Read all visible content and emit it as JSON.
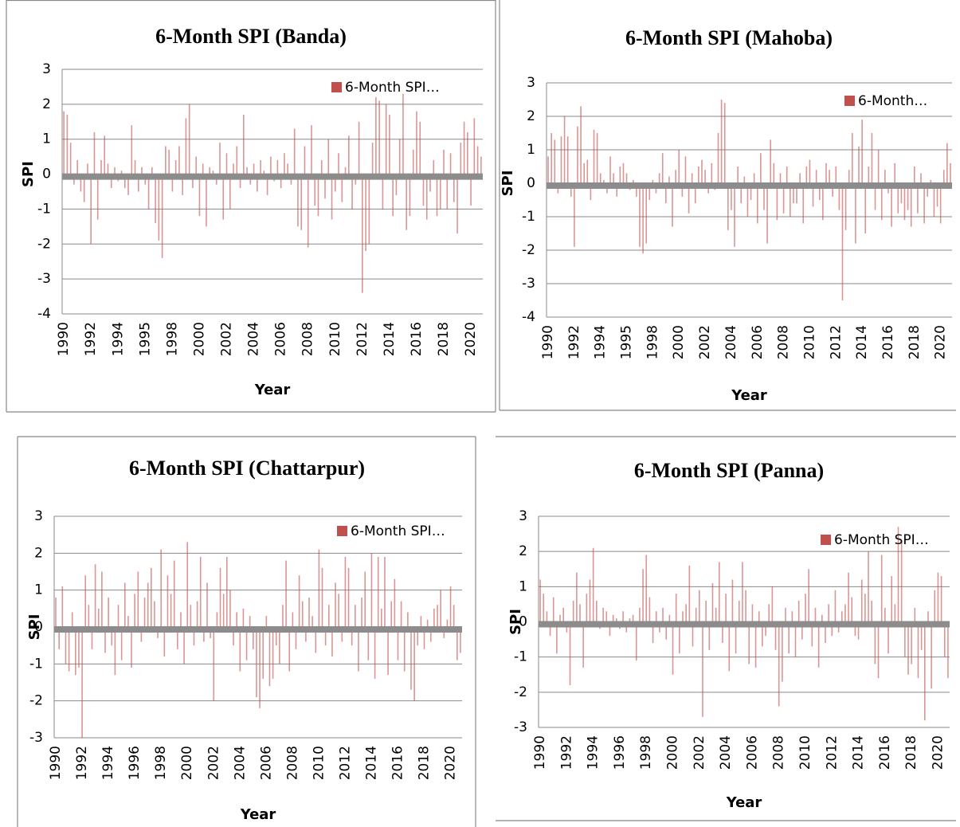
{
  "chart_data": [
    {
      "type": "bar",
      "title": "6-Month SPI (Banda)",
      "x_label": "Year",
      "y_label": "SPI",
      "categories": [
        "1990",
        null,
        null,
        null,
        null,
        null,
        null,
        null,
        "1992",
        null,
        null,
        null,
        null,
        null,
        null,
        null,
        "1994",
        null,
        null,
        null,
        null,
        null,
        null,
        null,
        "1995",
        null,
        null,
        null,
        null,
        null,
        null,
        null,
        "1998",
        null,
        null,
        null,
        null,
        null,
        null,
        null,
        "2000",
        null,
        null,
        null,
        null,
        null,
        null,
        null,
        "2002",
        null,
        null,
        null,
        null,
        null,
        null,
        null,
        "2004",
        null,
        null,
        null,
        null,
        null,
        null,
        null,
        "2006",
        null,
        null,
        null,
        null,
        null,
        null,
        null,
        "2008",
        null,
        null,
        null,
        null,
        null,
        null,
        null,
        "2010",
        null,
        null,
        null,
        null,
        null,
        null,
        null,
        "2012",
        null,
        null,
        null,
        null,
        null,
        null,
        null,
        "2014",
        null,
        null,
        null,
        null,
        null,
        null,
        null,
        "2016",
        null,
        null,
        null,
        null,
        null,
        null,
        null,
        "2018",
        null,
        null,
        null,
        null,
        null,
        null,
        null,
        "2020",
        null,
        null,
        null
      ],
      "series": [
        {
          "name": "6-Month SPI…",
          "color": "#c0504d",
          "values": [
            1.8,
            1.7,
            0.9,
            -0.3,
            0.4,
            -0.5,
            -0.8,
            0.3,
            -2.0,
            1.2,
            -1.3,
            0.4,
            1.1,
            0.3,
            -0.4,
            0.2,
            -0.2,
            0.1,
            -0.4,
            -0.6,
            1.4,
            0.4,
            -0.5,
            0.2,
            -0.3,
            -1.0,
            0.2,
            -1.4,
            -1.9,
            -2.4,
            0.8,
            0.7,
            -0.5,
            0.4,
            0.8,
            -0.6,
            1.6,
            2.0,
            -0.4,
            0.5,
            -1.2,
            0.3,
            -1.5,
            0.2,
            0.1,
            -0.3,
            0.9,
            -1.3,
            0.6,
            -1.0,
            0.3,
            0.8,
            -0.4,
            1.7,
            0.2,
            -0.3,
            0.3,
            -0.5,
            0.4,
            0.1,
            -0.6,
            0.5,
            -0.2,
            0.4,
            -0.4,
            0.6,
            0.3,
            -0.3,
            1.3,
            -1.5,
            -1.6,
            0.8,
            -2.1,
            1.4,
            -0.9,
            -1.2,
            0.4,
            -0.7,
            1.0,
            -1.3,
            -0.5,
            0.6,
            -0.8,
            0.2,
            1.1,
            -1.0,
            -0.3,
            1.5,
            -3.4,
            -2.2,
            -2.0,
            0.9,
            2.2,
            2.1,
            -1.0,
            2.0,
            1.7,
            -1.2,
            -0.6,
            1.0,
            2.3,
            -1.6,
            -1.2,
            0.7,
            1.8,
            1.5,
            -0.9,
            -1.3,
            -0.5,
            0.4,
            -1.2,
            -1.0,
            0.7,
            -1.0,
            0.6,
            -0.8,
            -1.7,
            0.9,
            1.5,
            1.2,
            -0.9,
            1.6,
            0.8,
            0.5
          ]
        }
      ],
      "ylim": [
        -4,
        3
      ],
      "yticks": [
        -4,
        -3,
        -2,
        -1,
        0,
        1,
        2,
        3
      ],
      "grid": true,
      "legend": "top-right"
    },
    {
      "type": "bar",
      "title": "6-Month SPI (Mahoba)",
      "x_label": "Year",
      "y_label": "SPI",
      "categories": [
        "1990",
        null,
        null,
        null,
        null,
        null,
        null,
        null,
        "1992",
        null,
        null,
        null,
        null,
        null,
        null,
        null,
        "1994",
        null,
        null,
        null,
        null,
        null,
        null,
        null,
        "1995",
        null,
        null,
        null,
        null,
        null,
        null,
        null,
        "1998",
        null,
        null,
        null,
        null,
        null,
        null,
        null,
        "2000",
        null,
        null,
        null,
        null,
        null,
        null,
        null,
        "2002",
        null,
        null,
        null,
        null,
        null,
        null,
        null,
        "2004",
        null,
        null,
        null,
        null,
        null,
        null,
        null,
        "2006",
        null,
        null,
        null,
        null,
        null,
        null,
        null,
        "2008",
        null,
        null,
        null,
        null,
        null,
        null,
        null,
        "2010",
        null,
        null,
        null,
        null,
        null,
        null,
        null,
        "2012",
        null,
        null,
        null,
        null,
        null,
        null,
        null,
        "2014",
        null,
        null,
        null,
        null,
        null,
        null,
        null,
        "2016",
        null,
        null,
        null,
        null,
        null,
        null,
        null,
        "2018",
        null,
        null,
        null,
        null,
        null,
        null,
        null,
        "2020",
        null,
        null,
        null
      ],
      "series": [
        {
          "name": "6-Month…",
          "color": "#c0504d",
          "values": [
            0.8,
            1.5,
            1.3,
            -0.3,
            1.4,
            2.0,
            1.4,
            -0.4,
            -1.9,
            1.7,
            2.3,
            0.6,
            0.7,
            -0.5,
            1.6,
            1.5,
            0.3,
            0.1,
            -0.3,
            0.8,
            0.3,
            -0.4,
            0.5,
            0.6,
            0.3,
            -0.2,
            0.1,
            -0.4,
            -1.9,
            -2.1,
            -1.8,
            -0.5,
            0.1,
            -0.3,
            0.3,
            0.9,
            -0.6,
            0.2,
            -1.3,
            0.4,
            1.0,
            -0.4,
            0.8,
            -0.9,
            0.3,
            -0.6,
            0.5,
            0.7,
            0.4,
            -0.3,
            0.6,
            -0.2,
            1.5,
            2.5,
            2.4,
            -1.4,
            -0.8,
            -1.9,
            0.5,
            -0.6,
            0.2,
            -1.0,
            -0.5,
            0.3,
            -1.2,
            0.9,
            -0.8,
            -1.8,
            1.3,
            0.6,
            -1.1,
            0.3,
            -0.9,
            0.5,
            -1.0,
            -0.6,
            -0.6,
            0.3,
            -1.2,
            0.5,
            0.7,
            -0.7,
            0.4,
            -0.5,
            -1.1,
            0.6,
            0.4,
            -0.4,
            0.5,
            -0.8,
            -3.5,
            -1.4,
            0.4,
            1.5,
            -1.8,
            1.1,
            1.9,
            -1.5,
            0.5,
            1.5,
            -0.8,
            1.0,
            -1.1,
            0.4,
            -0.3,
            -1.3,
            0.6,
            -0.9,
            -0.6,
            -1.1,
            -0.8,
            -1.3,
            0.5,
            -0.9,
            0.3,
            -1.2,
            -0.4,
            0.1,
            -1.0,
            -0.7,
            -1.2,
            0.4,
            1.2,
            0.6
          ]
        }
      ],
      "ylim": [
        -4,
        3
      ],
      "yticks": [
        -4,
        -3,
        -2,
        -1,
        0,
        1,
        2,
        3
      ],
      "grid": true,
      "legend": "top-right"
    },
    {
      "type": "bar",
      "title": "6-Month SPI (Chattarpur)",
      "x_label": "Year",
      "y_label": "SPI",
      "categories": [
        "1990",
        null,
        null,
        null,
        null,
        null,
        null,
        null,
        "1992",
        null,
        null,
        null,
        null,
        null,
        null,
        null,
        "1994",
        null,
        null,
        null,
        null,
        null,
        null,
        null,
        "1996",
        null,
        null,
        null,
        null,
        null,
        null,
        null,
        "1998",
        null,
        null,
        null,
        null,
        null,
        null,
        null,
        "2000",
        null,
        null,
        null,
        null,
        null,
        null,
        null,
        "2002",
        null,
        null,
        null,
        null,
        null,
        null,
        null,
        "2004",
        null,
        null,
        null,
        null,
        null,
        null,
        null,
        "2006",
        null,
        null,
        null,
        null,
        null,
        null,
        null,
        "2008",
        null,
        null,
        null,
        null,
        null,
        null,
        null,
        "2010",
        null,
        null,
        null,
        null,
        null,
        null,
        null,
        "2012",
        null,
        null,
        null,
        null,
        null,
        null,
        null,
        "2014",
        null,
        null,
        null,
        null,
        null,
        null,
        null,
        "2016",
        null,
        null,
        null,
        null,
        null,
        null,
        null,
        "2018",
        null,
        null,
        null,
        null,
        null,
        null,
        null,
        "2020",
        null,
        null,
        null
      ],
      "series": [
        {
          "name": "6-Month SPI…",
          "color": "#c0504d",
          "values": [
            0.8,
            -0.6,
            1.1,
            -1.0,
            -1.2,
            0.4,
            -1.3,
            -1.1,
            -3.0,
            1.4,
            0.6,
            -0.6,
            1.7,
            0.5,
            1.5,
            -0.7,
            0.8,
            -0.5,
            -1.3,
            0.6,
            -0.9,
            1.2,
            0.3,
            -1.1,
            0.9,
            1.5,
            -0.4,
            0.8,
            1.2,
            1.6,
            0.7,
            -0.3,
            2.1,
            -0.8,
            1.4,
            0.9,
            1.8,
            -0.6,
            0.4,
            -1.0,
            2.3,
            0.6,
            -0.5,
            0.7,
            1.9,
            -0.4,
            1.2,
            -0.3,
            -2.0,
            0.4,
            1.6,
            0.9,
            1.9,
            1.0,
            -0.5,
            0.4,
            -1.2,
            0.5,
            -0.9,
            0.3,
            -0.6,
            -1.9,
            -2.2,
            -1.4,
            0.3,
            -1.6,
            -1.4,
            -0.5,
            -1.0,
            0.6,
            1.8,
            -1.2,
            0.4,
            -0.6,
            1.4,
            0.7,
            -0.4,
            0.8,
            0.3,
            -0.7,
            2.1,
            1.6,
            -0.5,
            0.6,
            -0.8,
            1.2,
            0.9,
            -0.4,
            1.9,
            1.6,
            -0.5,
            0.6,
            -1.2,
            0.8,
            1.5,
            -0.9,
            2.0,
            -1.4,
            1.9,
            0.5,
            1.9,
            -1.3,
            0.7,
            1.3,
            -0.9,
            0.7,
            -1.2,
            0.4,
            -1.7,
            -2.0,
            -0.5,
            0.3,
            -0.6,
            0.2,
            -0.4,
            0.5,
            0.6,
            1.0,
            -0.3,
            0.2,
            1.1,
            0.6,
            -0.9,
            -0.7
          ]
        }
      ],
      "ylim": [
        -3,
        3
      ],
      "yticks": [
        -3,
        -2,
        -1,
        0,
        1,
        2,
        3
      ],
      "grid": true,
      "legend": "top-right"
    },
    {
      "type": "bar",
      "title": "6-Month SPI (Panna)",
      "x_label": "Year",
      "y_label": "SPI",
      "categories": [
        "1990",
        null,
        null,
        null,
        null,
        null,
        null,
        null,
        "1992",
        null,
        null,
        null,
        null,
        null,
        null,
        null,
        "1994",
        null,
        null,
        null,
        null,
        null,
        null,
        null,
        "1996",
        null,
        null,
        null,
        null,
        null,
        null,
        null,
        "1998",
        null,
        null,
        null,
        null,
        null,
        null,
        null,
        "2000",
        null,
        null,
        null,
        null,
        null,
        null,
        null,
        "2002",
        null,
        null,
        null,
        null,
        null,
        null,
        null,
        "2004",
        null,
        null,
        null,
        null,
        null,
        null,
        null,
        "2006",
        null,
        null,
        null,
        null,
        null,
        null,
        null,
        "2008",
        null,
        null,
        null,
        null,
        null,
        null,
        null,
        "2010",
        null,
        null,
        null,
        null,
        null,
        null,
        null,
        "2012",
        null,
        null,
        null,
        null,
        null,
        null,
        null,
        "2014",
        null,
        null,
        null,
        null,
        null,
        null,
        null,
        "2016",
        null,
        null,
        null,
        null,
        null,
        null,
        null,
        "2018",
        null,
        null,
        null,
        null,
        null,
        null,
        null,
        "2020",
        null,
        null,
        null
      ],
      "series": [
        {
          "name": "6-Month SPI…",
          "color": "#c0504d",
          "values": [
            1.2,
            0.8,
            0.3,
            -0.4,
            0.7,
            -0.9,
            0.2,
            0.4,
            -0.3,
            -1.8,
            0.6,
            1.4,
            0.5,
            -1.3,
            0.8,
            1.2,
            2.1,
            0.6,
            -0.2,
            0.4,
            0.3,
            -0.4,
            0.2,
            0.1,
            -0.2,
            0.3,
            -0.3,
            0.1,
            0.2,
            -1.1,
            0.4,
            1.5,
            1.9,
            0.7,
            -0.6,
            0.3,
            -0.3,
            0.4,
            -0.5,
            0.2,
            -1.5,
            0.8,
            -0.9,
            0.3,
            0.5,
            1.6,
            -0.7,
            0.4,
            0.9,
            -2.7,
            0.6,
            -0.8,
            1.1,
            0.4,
            1.7,
            -0.6,
            0.8,
            -1.4,
            1.2,
            -0.9,
            0.6,
            1.7,
            0.9,
            -1.2,
            0.5,
            -1.3,
            0.3,
            -0.7,
            -0.4,
            0.5,
            1.0,
            -0.8,
            -2.4,
            -1.7,
            0.4,
            -0.9,
            0.3,
            -1.0,
            0.6,
            -0.5,
            0.8,
            1.5,
            -0.7,
            0.4,
            -1.3,
            0.2,
            -0.6,
            0.5,
            -0.4,
            0.9,
            -0.3,
            0.3,
            0.5,
            1.4,
            0.7,
            -0.4,
            -0.5,
            1.2,
            0.8,
            2.0,
            0.6,
            -1.2,
            -1.6,
            1.9,
            0.4,
            -0.9,
            1.3,
            0.5,
            2.7,
            2.3,
            -1.0,
            -1.5,
            -1.2,
            0.4,
            -1.6,
            -0.8,
            -2.8,
            0.3,
            -1.9,
            0.9,
            1.4,
            1.3,
            -1.0,
            -1.6
          ]
        }
      ],
      "ylim": [
        -3,
        3
      ],
      "yticks": [
        -3,
        -2,
        -1,
        0,
        1,
        2,
        3
      ],
      "grid": true,
      "legend": "top-right"
    }
  ]
}
